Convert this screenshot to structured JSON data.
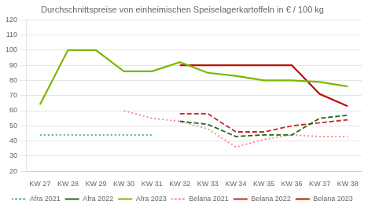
{
  "chart_data": {
    "type": "line",
    "title": "Durchschnittspreise von einheimischen Speiselagerkartoffeln in € / 100 kg",
    "categories": [
      "KW 27",
      "KW 28",
      "KW 29",
      "KW 30",
      "KW 31",
      "KW 32",
      "KW 33",
      "KW 34",
      "KW 35",
      "KW 36",
      "KW 37",
      "KW 38"
    ],
    "series": [
      {
        "name": "Afra 2021",
        "color": "#3CB371",
        "line_style": "dotted",
        "values": [
          44,
          44,
          44,
          44,
          44,
          null,
          null,
          null,
          null,
          null,
          null,
          null
        ]
      },
      {
        "name": "Afra 2022",
        "color": "#1A6B1A",
        "line_style": "dashed",
        "values": [
          null,
          null,
          null,
          null,
          null,
          53,
          51,
          43,
          44,
          44,
          55,
          57
        ]
      },
      {
        "name": "Afra 2023",
        "color": "#7AB800",
        "line_style": "solid",
        "values": [
          64,
          100,
          100,
          86,
          86,
          92,
          85,
          83,
          80,
          80,
          79,
          76
        ]
      },
      {
        "name": "Belana 2021",
        "color": "#FF8080",
        "line_style": "dotted",
        "values": [
          null,
          null,
          null,
          60,
          55,
          53,
          48,
          36,
          41,
          44,
          43,
          43
        ]
      },
      {
        "name": "Belana 2022",
        "color": "#CC2222",
        "line_style": "dashed",
        "values": [
          null,
          null,
          null,
          null,
          null,
          58,
          58,
          46,
          46,
          50,
          52,
          54
        ]
      },
      {
        "name": "Belana 2023",
        "color": "#BB1100",
        "line_style": "solid",
        "values": [
          null,
          null,
          null,
          null,
          null,
          90,
          90,
          90,
          90,
          90,
          71,
          63
        ]
      }
    ],
    "ylim": [
      20,
      120
    ],
    "yticks": [
      20,
      30,
      40,
      50,
      60,
      70,
      80,
      90,
      100,
      110,
      120
    ],
    "grid": true,
    "legend": "bottom"
  }
}
